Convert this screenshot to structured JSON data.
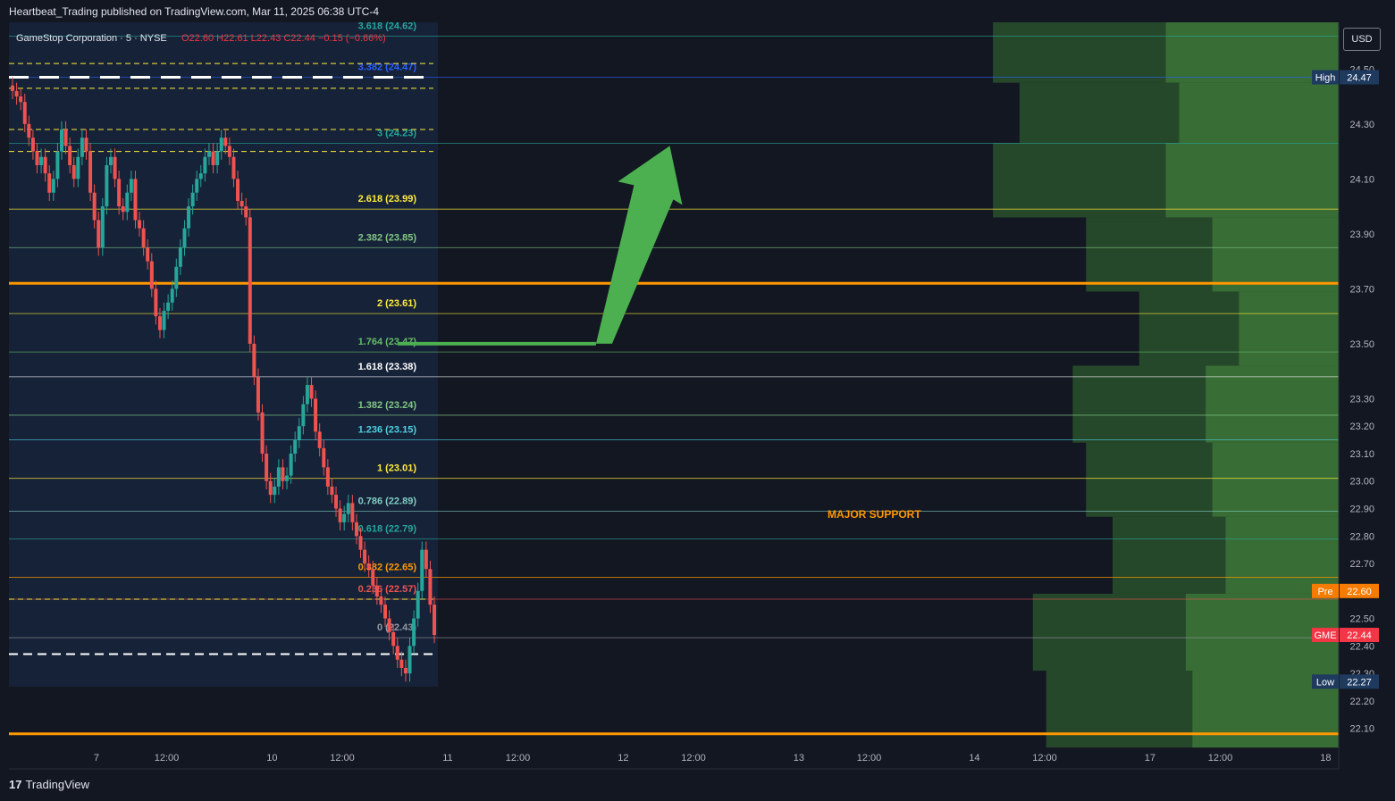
{
  "header": {
    "published": "Heartbeat_Trading published on TradingView.com, Mar 11, 2025 06:38 UTC-4"
  },
  "currency_button": "USD",
  "brand": {
    "logo": "17",
    "name": "TradingView"
  },
  "annotations": {
    "major_support": "MAJOR SUPPORT"
  },
  "chart_data": {
    "type": "candlestick",
    "title": "GameStop Corporation · 5 · NYSE",
    "ohlc_label": "O22.60 H22.61 L22.43 C22.44 −0.15 (−0.66%)",
    "symbol": "GME",
    "interval": "5",
    "exchange": "NYSE",
    "ylim": [
      22.05,
      24.67
    ],
    "y_ticks": [
      {
        "v": 24.5,
        "label": "24.50"
      },
      {
        "v": 24.3,
        "label": "24.30"
      },
      {
        "v": 24.1,
        "label": "24.10"
      },
      {
        "v": 23.9,
        "label": "23.90"
      },
      {
        "v": 23.7,
        "label": "23.70"
      },
      {
        "v": 23.5,
        "label": "23.50"
      },
      {
        "v": 23.3,
        "label": "23.30"
      },
      {
        "v": 23.2,
        "label": "23.20"
      },
      {
        "v": 23.1,
        "label": "23.10"
      },
      {
        "v": 23.0,
        "label": "23.00"
      },
      {
        "v": 22.9,
        "label": "22.90"
      },
      {
        "v": 22.8,
        "label": "22.80"
      },
      {
        "v": 22.7,
        "label": "22.70"
      },
      {
        "v": 22.5,
        "label": "22.50"
      },
      {
        "v": 22.4,
        "label": "22.40"
      },
      {
        "v": 22.3,
        "label": "22.30"
      },
      {
        "v": 22.2,
        "label": "22.20"
      },
      {
        "v": 22.1,
        "label": "22.10"
      }
    ],
    "x_ticks": [
      {
        "t": 0.6,
        "label": "7"
      },
      {
        "t": 1.0,
        "label": "12:00"
      },
      {
        "t": 1.6,
        "label": "10"
      },
      {
        "t": 2.0,
        "label": "12:00"
      },
      {
        "t": 2.6,
        "label": "11"
      },
      {
        "t": 3.0,
        "label": "12:00"
      },
      {
        "t": 3.6,
        "label": "12"
      },
      {
        "t": 4.0,
        "label": "12:00"
      },
      {
        "t": 4.6,
        "label": "13"
      },
      {
        "t": 5.0,
        "label": "12:00"
      },
      {
        "t": 5.6,
        "label": "14"
      },
      {
        "t": 6.0,
        "label": "12:00"
      },
      {
        "t": 6.6,
        "label": "17"
      },
      {
        "t": 7.0,
        "label": "12:00"
      },
      {
        "t": 7.6,
        "label": "18"
      }
    ],
    "fib_levels": [
      {
        "ratio": "3.618",
        "value": 24.62,
        "label": "3.618 (24.62)",
        "color": "#26a69a"
      },
      {
        "ratio": "3.382",
        "value": 24.47,
        "label": "3.382 (24.47)",
        "color": "#2962ff"
      },
      {
        "ratio": "3",
        "value": 24.23,
        "label": "3 (24.23)",
        "color": "#26a69a"
      },
      {
        "ratio": "2.618",
        "value": 23.99,
        "label": "2.618 (23.99)",
        "color": "#ffeb3b"
      },
      {
        "ratio": "2.382",
        "value": 23.85,
        "label": "2.382 (23.85)",
        "color": "#81c784"
      },
      {
        "ratio": "2",
        "value": 23.61,
        "label": "2 (23.61)",
        "color": "#ffeb3b"
      },
      {
        "ratio": "1.764",
        "value": 23.47,
        "label": "1.764 (23.47)",
        "color": "#66bb6a"
      },
      {
        "ratio": "1.618",
        "value": 23.38,
        "label": "1.618 (23.38)",
        "color": "#ffffff"
      },
      {
        "ratio": "1.382",
        "value": 23.24,
        "label": "1.382 (23.24)",
        "color": "#81c784"
      },
      {
        "ratio": "1.236",
        "value": 23.15,
        "label": "1.236 (23.15)",
        "color": "#4dd0e1"
      },
      {
        "ratio": "1",
        "value": 23.01,
        "label": "1 (23.01)",
        "color": "#ffeb3b"
      },
      {
        "ratio": "0.786",
        "value": 22.89,
        "label": "0.786 (22.89)",
        "color": "#80cbc4"
      },
      {
        "ratio": "0.618",
        "value": 22.79,
        "label": "0.618 (22.79)",
        "color": "#26a69a"
      },
      {
        "ratio": "0.382",
        "value": 22.65,
        "label": "0.382 (22.65)",
        "color": "#ff9800"
      },
      {
        "ratio": "0.236",
        "value": 22.57,
        "label": "0.236 (22.57)",
        "color": "#ef5350"
      },
      {
        "ratio": "0",
        "value": 22.43,
        "label": "0 (22.43)",
        "color": "#9598a1"
      }
    ],
    "price_tags": [
      {
        "name": "High",
        "value": 24.47,
        "label": "24.47",
        "bg": "#1e3a5f"
      },
      {
        "name": "Pre",
        "value": 22.6,
        "label": "22.60",
        "bg": "#f57c00"
      },
      {
        "name": "GME",
        "value": 22.44,
        "label": "22.44",
        "bg": "#f23645"
      },
      {
        "name": "Low",
        "value": 22.27,
        "label": "22.27",
        "bg": "#1e3a5f"
      }
    ],
    "support_resistance_orange": [
      23.72,
      22.08
    ],
    "volume_profile_rows": [
      {
        "from": 24.45,
        "to": 24.67,
        "width": 0.26
      },
      {
        "from": 24.23,
        "to": 24.45,
        "width": 0.24
      },
      {
        "from": 23.96,
        "to": 24.23,
        "width": 0.26
      },
      {
        "from": 23.69,
        "to": 23.96,
        "width": 0.19
      },
      {
        "from": 23.42,
        "to": 23.69,
        "width": 0.15
      },
      {
        "from": 23.14,
        "to": 23.42,
        "width": 0.2
      },
      {
        "from": 22.87,
        "to": 23.14,
        "width": 0.19
      },
      {
        "from": 22.59,
        "to": 22.87,
        "width": 0.17
      },
      {
        "from": 22.31,
        "to": 22.59,
        "width": 0.23
      },
      {
        "from": 22.03,
        "to": 22.31,
        "width": 0.22
      }
    ],
    "projection_arrow": [
      {
        "t": 2.32,
        "v": 23.5
      },
      {
        "t": 3.45,
        "v": 23.5
      },
      {
        "t": 3.87,
        "v": 24.22
      }
    ],
    "candles_close": [
      24.42,
      24.4,
      24.38,
      24.3,
      24.25,
      24.2,
      24.15,
      24.18,
      24.12,
      24.05,
      24.1,
      24.2,
      24.28,
      24.22,
      24.15,
      24.1,
      24.18,
      24.25,
      24.2,
      24.05,
      23.95,
      23.85,
      24.0,
      24.15,
      24.18,
      24.1,
      24.0,
      23.98,
      24.05,
      24.1,
      23.95,
      23.92,
      23.85,
      23.8,
      23.7,
      23.6,
      23.55,
      23.62,
      23.65,
      23.7,
      23.78,
      23.85,
      23.92,
      24.0,
      24.05,
      24.1,
      24.12,
      24.18,
      24.2,
      24.15,
      24.2,
      24.25,
      24.22,
      24.18,
      24.1,
      24.02,
      24.0,
      23.96,
      23.5,
      23.38,
      23.25,
      23.1,
      23.0,
      22.95,
      22.98,
      23.05,
      23.0,
      23.02,
      23.1,
      23.15,
      23.2,
      23.28,
      23.35,
      23.3,
      23.18,
      23.12,
      23.05,
      22.98,
      22.95,
      22.9,
      22.85,
      22.88,
      22.92,
      22.85,
      22.8,
      22.75,
      22.7,
      22.68,
      22.62,
      22.58,
      22.55,
      22.5,
      22.45,
      22.4,
      22.35,
      22.32,
      22.3,
      22.4,
      22.5,
      22.6,
      22.75,
      22.68,
      22.55,
      22.44
    ]
  }
}
